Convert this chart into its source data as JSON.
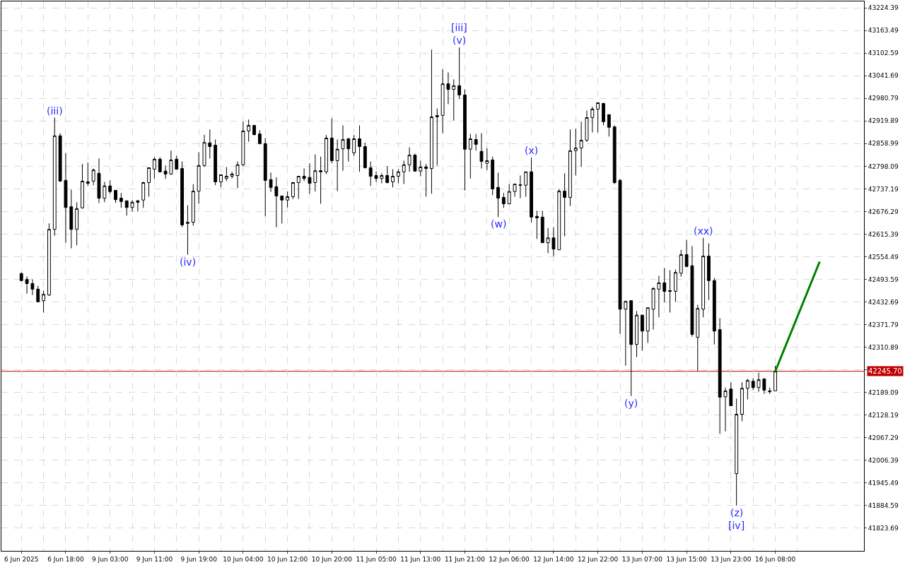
{
  "chart_data": {
    "type": "candlestick",
    "categories": [
      "6 Jun 2025",
      null,
      null,
      null,
      null,
      null,
      null,
      null,
      "6 Jun 18:00",
      null,
      null,
      null,
      null,
      null,
      null,
      null,
      "9 Jun 03:00",
      null,
      null,
      null,
      null,
      null,
      null,
      null,
      "9 Jun 11:00",
      null,
      null,
      null,
      null,
      null,
      null,
      null,
      "9 Jun 19:00",
      null,
      null,
      null,
      null,
      null,
      null,
      null,
      "10 Jun 04:00",
      null,
      null,
      null,
      null,
      null,
      null,
      null,
      "10 Jun 12:00",
      null,
      null,
      null,
      null,
      null,
      null,
      null,
      "10 Jun 20:00",
      null,
      null,
      null,
      null,
      null,
      null,
      null,
      "11 Jun 05:00",
      null,
      null,
      null,
      null,
      null,
      null,
      null,
      "11 Jun 13:00",
      null,
      null,
      null,
      null,
      null,
      null,
      null,
      "11 Jun 21:00",
      null,
      null,
      null,
      null,
      null,
      null,
      null,
      "12 Jun 06:00",
      null,
      null,
      null,
      null,
      null,
      null,
      null,
      "12 Jun 14:00",
      null,
      null,
      null,
      null,
      null,
      null,
      null,
      "12 Jun 22:00",
      null,
      null,
      null,
      null,
      null,
      null,
      null,
      "13 Jun 07:00",
      null,
      null,
      null,
      null,
      null,
      null,
      null,
      "13 Jun 15:00",
      null,
      null,
      null,
      null,
      null,
      null,
      null,
      "13 Jun 23:00",
      null,
      null,
      null,
      null,
      null,
      null,
      null,
      "16 Jun 08:00",
      null,
      null,
      null,
      null,
      null,
      null,
      null,
      null,
      null,
      null,
      null,
      null,
      null,
      null,
      null
    ],
    "ohlc": [
      [
        42509,
        42512,
        42488,
        42490
      ],
      [
        42493,
        42501,
        42455,
        42482
      ],
      [
        42482,
        42493,
        42451,
        42467
      ],
      [
        42467,
        42476,
        42431,
        42433
      ],
      [
        42436,
        42463,
        42404,
        42453
      ],
      [
        42451,
        42644,
        42449,
        42628
      ],
      [
        42628,
        42929,
        42611,
        42880
      ],
      [
        42880,
        42887,
        42756,
        42758
      ],
      [
        42760,
        42834,
        42592,
        42687
      ],
      [
        42689,
        42735,
        42577,
        42628
      ],
      [
        42628,
        42701,
        42585,
        42684
      ],
      [
        42686,
        42804,
        42684,
        42758
      ],
      [
        42756,
        42808,
        42745,
        42752
      ],
      [
        42758,
        42792,
        42747,
        42788
      ],
      [
        42779,
        42819,
        42699,
        42712
      ],
      [
        42712,
        42756,
        42701,
        42745
      ],
      [
        42745,
        42760,
        42724,
        42730
      ],
      [
        42733,
        42733,
        42699,
        42708
      ],
      [
        42712,
        42726,
        42686,
        42703
      ],
      [
        42705,
        42705,
        42665,
        42687
      ],
      [
        42687,
        42707,
        42676,
        42701
      ],
      [
        42705,
        42707,
        42676,
        42701
      ],
      [
        42707,
        42756,
        42686,
        42754
      ],
      [
        42754,
        42794,
        42716,
        42794
      ],
      [
        42790,
        42822,
        42764,
        42817
      ],
      [
        42817,
        42822,
        42781,
        42783
      ],
      [
        42785,
        42800,
        42764,
        42777
      ],
      [
        42777,
        42840,
        42775,
        42815
      ],
      [
        42817,
        42826,
        42790,
        42790
      ],
      [
        42792,
        42811,
        42634,
        42640
      ],
      [
        42644,
        42693,
        42560,
        42647
      ],
      [
        42647,
        42750,
        42638,
        42731
      ],
      [
        42731,
        42836,
        42697,
        42800
      ],
      [
        42800,
        42883,
        42796,
        42862
      ],
      [
        42861,
        42897,
        42819,
        42851
      ],
      [
        42855,
        42870,
        42747,
        42756
      ],
      [
        42756,
        42775,
        42741,
        42775
      ],
      [
        42765,
        42796,
        42758,
        42771
      ],
      [
        42771,
        42783,
        42765,
        42777
      ],
      [
        42773,
        42811,
        42739,
        42802
      ],
      [
        42802,
        42918,
        42798,
        42893
      ],
      [
        42893,
        42924,
        42864,
        42908
      ],
      [
        42908,
        42908,
        42882,
        42883
      ],
      [
        42885,
        42895,
        42857,
        42859
      ],
      [
        42859,
        42874,
        42663,
        42760
      ],
      [
        42762,
        42781,
        42729,
        42741
      ],
      [
        42743,
        42768,
        42634,
        42718
      ],
      [
        42718,
        42718,
        42644,
        42707
      ],
      [
        42707,
        42730,
        42687,
        42716
      ],
      [
        42716,
        42756,
        42710,
        42754
      ],
      [
        42754,
        42771,
        42710,
        42771
      ],
      [
        42771,
        42792,
        42758,
        42765
      ],
      [
        42768,
        42806,
        42724,
        42752
      ],
      [
        42754,
        42830,
        42730,
        42786
      ],
      [
        42786,
        42824,
        42697,
        42783
      ],
      [
        42783,
        42882,
        42777,
        42874
      ],
      [
        42874,
        42927,
        42806,
        42813
      ],
      [
        42813,
        42870,
        42731,
        42844
      ],
      [
        42845,
        42908,
        42786,
        42870
      ],
      [
        42872,
        42874,
        42811,
        42845
      ],
      [
        42834,
        42882,
        42826,
        42872
      ],
      [
        42872,
        42908,
        42783,
        42851
      ],
      [
        42851,
        42862,
        42792,
        42794
      ],
      [
        42794,
        42811,
        42745,
        42771
      ],
      [
        42773,
        42783,
        42756,
        42765
      ],
      [
        42765,
        42779,
        42752,
        42773
      ],
      [
        42773,
        42798,
        42752,
        42754
      ],
      [
        42756,
        42790,
        42741,
        42771
      ],
      [
        42771,
        42790,
        42752,
        42783
      ],
      [
        42783,
        42813,
        42750,
        42802
      ],
      [
        42802,
        42849,
        42783,
        42828
      ],
      [
        42828,
        42832,
        42783,
        42785
      ],
      [
        42785,
        42813,
        42771,
        42796
      ],
      [
        42796,
        42804,
        42716,
        42792
      ],
      [
        42792,
        43112,
        42724,
        42931
      ],
      [
        42931,
        42954,
        42800,
        42935
      ],
      [
        42935,
        43059,
        42887,
        43020
      ],
      [
        43020,
        43051,
        42965,
        43005
      ],
      [
        43005,
        43032,
        42921,
        43015
      ],
      [
        43015,
        43118,
        42979,
        42990
      ],
      [
        42990,
        43005,
        42733,
        42844
      ],
      [
        42844,
        42885,
        42765,
        42872
      ],
      [
        42870,
        42885,
        42840,
        42857
      ],
      [
        42838,
        42887,
        42792,
        42811
      ],
      [
        42806,
        42847,
        42788,
        42813
      ],
      [
        42815,
        42824,
        42720,
        42737
      ],
      [
        42741,
        42781,
        42661,
        42712
      ],
      [
        42714,
        42726,
        42686,
        42697
      ],
      [
        42697,
        42750,
        42695,
        42730
      ],
      [
        42730,
        42750,
        42716,
        42750
      ],
      [
        42748,
        42773,
        42712,
        42747
      ],
      [
        42747,
        42783,
        42716,
        42783
      ],
      [
        42783,
        42821,
        42647,
        42661
      ],
      [
        42663,
        42678,
        42602,
        42659
      ],
      [
        42661,
        42678,
        42592,
        42592
      ],
      [
        42592,
        42632,
        42564,
        42605
      ],
      [
        42605,
        42634,
        42556,
        42575
      ],
      [
        42573,
        42737,
        42573,
        42731
      ],
      [
        42731,
        42779,
        42609,
        42714
      ],
      [
        42714,
        42897,
        42691,
        42840
      ],
      [
        42840,
        42899,
        42773,
        42847
      ],
      [
        42847,
        42918,
        42796,
        42868
      ],
      [
        42868,
        42948,
        42864,
        42929
      ],
      [
        42929,
        42958,
        42889,
        42952
      ],
      [
        42952,
        42969,
        42889,
        42969
      ],
      [
        42967,
        42969,
        42908,
        42918
      ],
      [
        42937,
        42937,
        42878,
        42903
      ],
      [
        42904,
        42908,
        42750,
        42754
      ],
      [
        42760,
        42764,
        42347,
        42413
      ],
      [
        42413,
        42436,
        42261,
        42434
      ],
      [
        42436,
        42436,
        42179,
        42318
      ],
      [
        42318,
        42408,
        42284,
        42397
      ],
      [
        42397,
        42398,
        42301,
        42354
      ],
      [
        42354,
        42417,
        42322,
        42417
      ],
      [
        42413,
        42472,
        42358,
        42469
      ],
      [
        42467,
        42503,
        42391,
        42484
      ],
      [
        42484,
        42524,
        42431,
        42461
      ],
      [
        42463,
        42518,
        42404,
        42461
      ],
      [
        42461,
        42520,
        42433,
        42512
      ],
      [
        42510,
        42573,
        42501,
        42560
      ],
      [
        42560,
        42600,
        42526,
        42528
      ],
      [
        42530,
        42583,
        42339,
        42345
      ],
      [
        42337,
        42425,
        42246,
        42415
      ],
      [
        42413,
        42605,
        42391,
        42556
      ],
      [
        42556,
        42590,
        42438,
        42490
      ],
      [
        42490,
        42497,
        42318,
        42354
      ],
      [
        42358,
        42389,
        42077,
        42176
      ],
      [
        42177,
        42202,
        42084,
        42193
      ],
      [
        42198,
        42216,
        42153,
        42153
      ],
      [
        41970,
        42172,
        41884,
        42130
      ],
      [
        42130,
        42216,
        42111,
        42200
      ],
      [
        42200,
        42225,
        42170,
        42221
      ],
      [
        42219,
        42227,
        42195,
        42202
      ],
      [
        42202,
        42242,
        42191,
        42223
      ],
      [
        42225,
        42227,
        42185,
        42195
      ],
      [
        42193,
        42202,
        42185,
        42191
      ],
      [
        42193,
        42261,
        42193,
        42245.7
      ],
      null,
      null,
      null,
      null,
      null,
      null,
      null,
      null,
      null,
      null,
      null,
      null,
      null,
      null,
      null
    ],
    "series": [
      {
        "type": "line",
        "color": "#008000",
        "values": [
          null,
          null,
          null,
          null,
          null,
          null,
          null,
          null,
          null,
          null,
          null,
          null,
          null,
          null,
          null,
          null,
          null,
          null,
          null,
          null,
          null,
          null,
          null,
          null,
          null,
          null,
          null,
          null,
          null,
          null,
          null,
          null,
          null,
          null,
          null,
          null,
          null,
          null,
          null,
          null,
          null,
          null,
          null,
          null,
          null,
          null,
          null,
          null,
          null,
          null,
          null,
          null,
          null,
          null,
          null,
          null,
          null,
          null,
          null,
          null,
          null,
          null,
          null,
          null,
          null,
          null,
          null,
          null,
          null,
          null,
          null,
          null,
          null,
          null,
          null,
          null,
          null,
          null,
          null,
          null,
          null,
          null,
          null,
          null,
          null,
          null,
          null,
          null,
          null,
          null,
          null,
          null,
          null,
          null,
          null,
          null,
          null,
          null,
          null,
          null,
          null,
          null,
          null,
          null,
          null,
          null,
          null,
          null,
          null,
          null,
          null,
          null,
          null,
          null,
          null,
          null,
          null,
          null,
          null,
          null,
          null,
          null,
          null,
          null,
          null,
          null,
          null,
          null,
          null,
          null,
          null,
          null,
          null,
          null,
          null,
          null,
          42245.7,
          null,
          null,
          null,
          null,
          null,
          null,
          null,
          42541,
          null,
          null,
          null,
          null,
          null,
          null,
          null
        ]
      }
    ],
    "ylim": [
      41762,
      43242
    ],
    "yticks": [
      43224.39,
      43163.49,
      43102.59,
      43041.69,
      42980.79,
      42919.89,
      42858.99,
      42798.09,
      42737.19,
      42676.29,
      42615.39,
      42554.49,
      42493.59,
      42432.69,
      42371.79,
      42310.89,
      {
        "value": 42249.99,
        "label": null
      },
      42189.09,
      42128.19,
      42067.29,
      42006.39,
      41945.49,
      41884.59,
      41823.69
    ],
    "ref_lines": [
      {
        "axis": "y",
        "value": 42245.7,
        "label": "42245.70",
        "color": "#c00000"
      }
    ],
    "annotations": [
      {
        "text": "(iii)",
        "y": 42929
      },
      {
        "text": "(iv)",
        "y": 42560
      },
      {
        "text": "(v)",
        "y": 43118
      },
      {
        "text": "[iii]",
        "y": 43118
      },
      {
        "text": "(w)",
        "y": 42661
      },
      {
        "text": "(x)",
        "y": 42821
      },
      {
        "text": "(y)",
        "y": 42179
      },
      {
        "text": "(xx)",
        "y": 42605
      },
      {
        "text": "(z)",
        "y": 41884
      },
      {
        "text": "[iv]",
        "y": 41884
      }
    ],
    "grid": true
  }
}
